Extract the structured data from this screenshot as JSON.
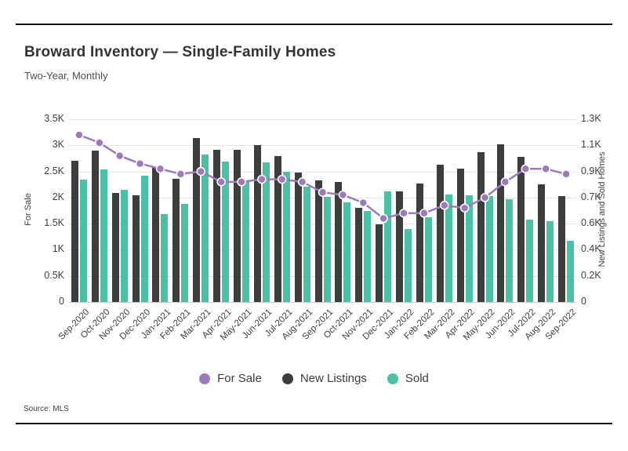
{
  "header": {
    "title": "Broward Inventory — Single-Family Homes",
    "subtitle": "Two-Year, Monthly"
  },
  "footer": {
    "source": "Source: MLS"
  },
  "legend": {
    "position": "bottom-center"
  },
  "chart_data": {
    "type": "combo-bar-line",
    "title": "Broward Inventory — Single-Family Homes",
    "subtitle": "Two-Year, Monthly",
    "grid": "horizontal-on",
    "categories": [
      "Sep-2020",
      "Oct-2020",
      "Nov-2020",
      "Dec-2020",
      "Jan-2021",
      "Feb-2021",
      "Mar-2021",
      "Apr-2021",
      "May-2021",
      "Jun-2021",
      "Jul-2021",
      "Aug-2021",
      "Sep-2021",
      "Oct-2021",
      "Nov-2021",
      "Dec-2021",
      "Jan-2022",
      "Feb-2022",
      "Mar-2022",
      "Apr-2022",
      "May-2022",
      "Jun-2022",
      "Jul-2022",
      "Aug-2022",
      "Sep-2022"
    ],
    "axis_left": {
      "title": "For Sale",
      "ylim": [
        0,
        3500
      ],
      "tick_labels_bottom_to_top": [
        "0",
        "0.5K",
        "1K",
        "1.5K",
        "2K",
        "2.5K",
        "3K",
        "3.5K"
      ]
    },
    "axis_right": {
      "title": "New Listings and Sold Homes",
      "ylim": [
        0,
        1300
      ],
      "tick_labels_bottom_to_top": [
        "0",
        "0.2K",
        "0.4K",
        "0.6K",
        "0.7K",
        "0.9K",
        "1.1K",
        "1.3K"
      ]
    },
    "series": [
      {
        "name": "For Sale",
        "type": "line",
        "axis": "left",
        "color": "#9c7bb9",
        "values": [
          3200,
          3050,
          2800,
          2650,
          2550,
          2450,
          2500,
          2300,
          2300,
          2350,
          2350,
          2300,
          2100,
          2050,
          1900,
          1600,
          1700,
          1700,
          1850,
          1800,
          2000,
          2300,
          2550,
          2550,
          2450
        ]
      },
      {
        "name": "New Listings",
        "type": "bar",
        "axis": "right",
        "color": "#3d3d3d",
        "values": [
          1005,
          1075,
          775,
          760,
          960,
          875,
          1165,
          1085,
          1085,
          1115,
          1035,
          920,
          865,
          855,
          670,
          555,
          785,
          845,
          975,
          950,
          1065,
          1120,
          1030,
          835,
          755
        ]
      },
      {
        "name": "Sold",
        "type": "bar",
        "axis": "right",
        "color": "#4dbfa6",
        "values": [
          870,
          945,
          800,
          900,
          625,
          700,
          1050,
          1000,
          860,
          995,
          925,
          820,
          745,
          710,
          645,
          785,
          520,
          605,
          765,
          760,
          755,
          730,
          585,
          575,
          435
        ]
      }
    ]
  }
}
